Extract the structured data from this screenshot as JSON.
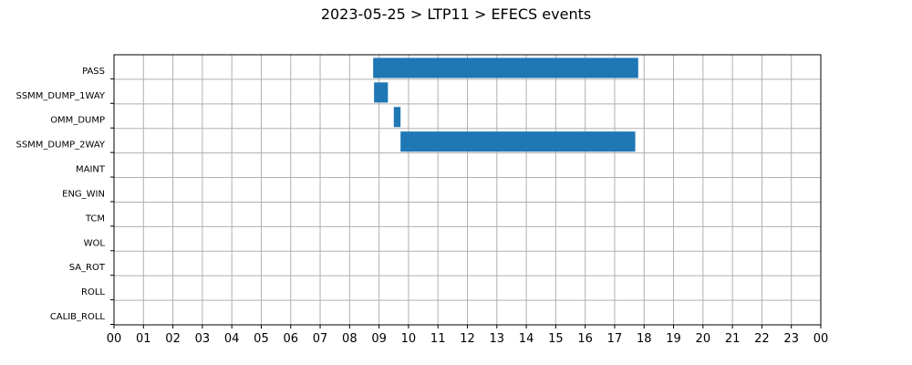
{
  "chart_data": {
    "type": "gantt",
    "title": "2023-05-25 > LTP11 > EFECS events",
    "xlabel": "",
    "ylabel": "",
    "x_unit": "hour of day",
    "xlim": [
      0,
      24
    ],
    "x_tick_labels": [
      "00",
      "01",
      "02",
      "03",
      "04",
      "05",
      "06",
      "07",
      "08",
      "09",
      "10",
      "11",
      "12",
      "13",
      "14",
      "15",
      "16",
      "17",
      "18",
      "19",
      "20",
      "21",
      "22",
      "23",
      "00"
    ],
    "categories": [
      "PASS",
      "SSMM_DUMP_1WAY",
      "OMM_DUMP",
      "SSMM_DUMP_2WAY",
      "MAINT",
      "ENG_WIN",
      "TCM",
      "WOL",
      "SA_ROT",
      "ROLL",
      "CALIB_ROLL"
    ],
    "intervals": [
      {
        "category": "PASS",
        "start": 8.8,
        "end": 17.8
      },
      {
        "category": "SSMM_DUMP_1WAY",
        "start": 8.83,
        "end": 9.3
      },
      {
        "category": "OMM_DUMP",
        "start": 9.5,
        "end": 9.73
      },
      {
        "category": "SSMM_DUMP_2WAY",
        "start": 9.73,
        "end": 17.7
      }
    ],
    "bar_color": "#1f77b4",
    "grid": true,
    "legend": "none"
  }
}
